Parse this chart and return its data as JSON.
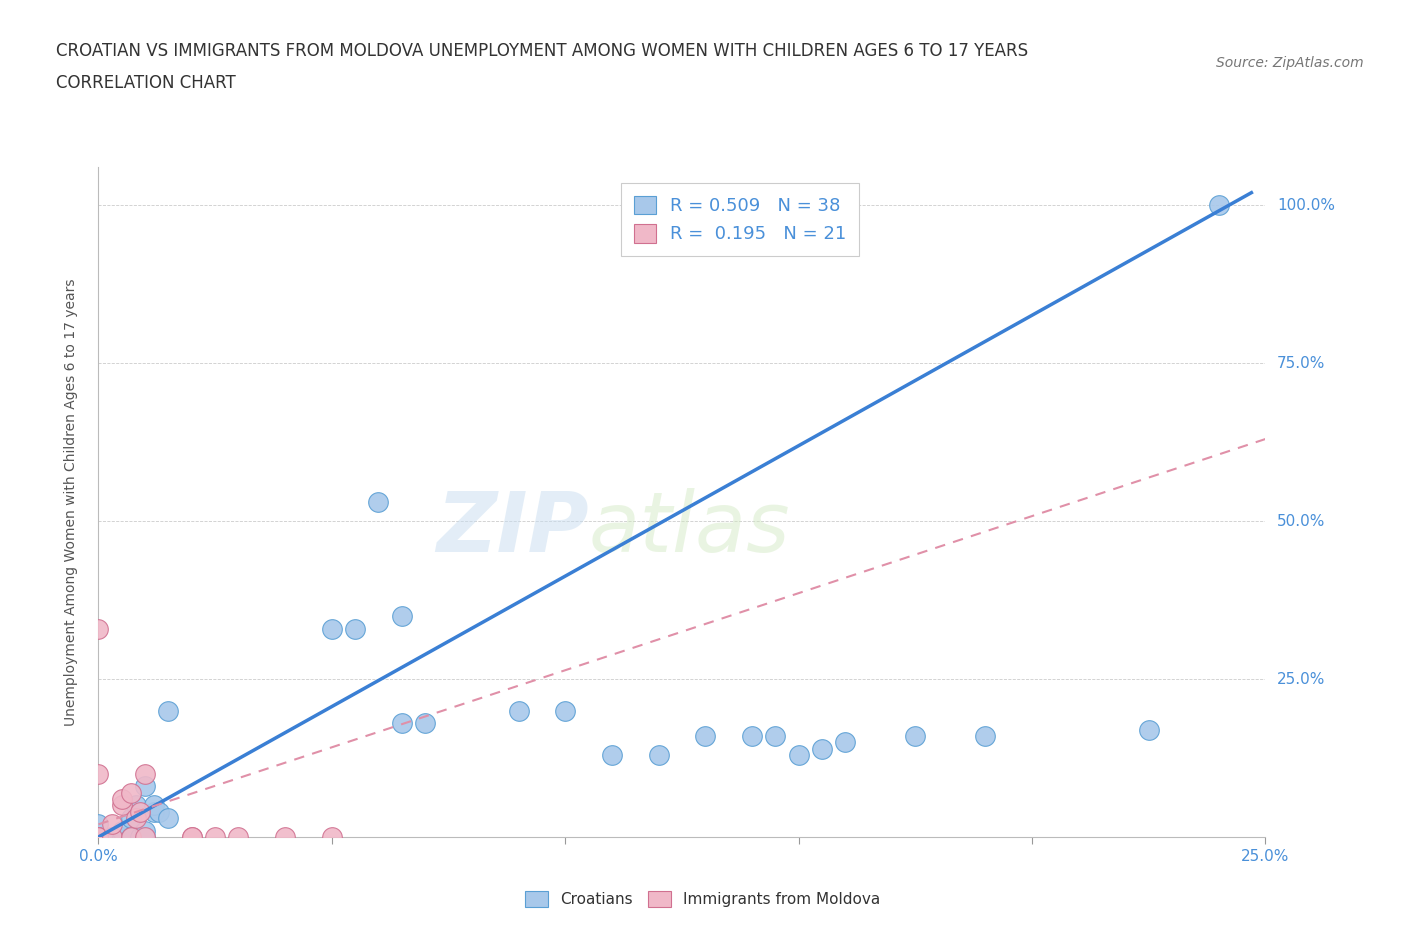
{
  "title_line1": "CROATIAN VS IMMIGRANTS FROM MOLDOVA UNEMPLOYMENT AMONG WOMEN WITH CHILDREN AGES 6 TO 17 YEARS",
  "title_line2": "CORRELATION CHART",
  "source": "Source: ZipAtlas.com",
  "ylabel": "Unemployment Among Women with Children Ages 6 to 17 years",
  "xlim": [
    0.0,
    0.25
  ],
  "ylim": [
    0.0,
    1.05
  ],
  "croatian_color": "#a8c8ea",
  "croatian_edge": "#5a9fd4",
  "moldovan_color": "#f0b8c8",
  "moldovan_edge": "#d07090",
  "line_croatian_color": "#3a7fd4",
  "line_moldovan_color": "#e090a8",
  "legend_R_croatian": "0.509",
  "legend_N_croatian": "38",
  "legend_R_moldovan": "0.195",
  "legend_N_moldovan": "21",
  "watermark_zip": "ZIP",
  "watermark_atlas": "atlas",
  "background_color": "#ffffff",
  "croatian_scatter_x": [
    0.0,
    0.0,
    0.0,
    0.003,
    0.005,
    0.005,
    0.007,
    0.007,
    0.008,
    0.009,
    0.01,
    0.01,
    0.01,
    0.012,
    0.012,
    0.013,
    0.015,
    0.015,
    0.05,
    0.055,
    0.06,
    0.065,
    0.065,
    0.07,
    0.09,
    0.1,
    0.11,
    0.12,
    0.13,
    0.14,
    0.145,
    0.15,
    0.155,
    0.16,
    0.175,
    0.19,
    0.225,
    0.24
  ],
  "croatian_scatter_y": [
    0.0,
    0.0,
    0.02,
    0.0,
    0.0,
    0.01,
    0.0,
    0.03,
    0.05,
    0.0,
    0.0,
    0.01,
    0.08,
    0.04,
    0.05,
    0.04,
    0.03,
    0.2,
    0.33,
    0.33,
    0.53,
    0.35,
    0.18,
    0.18,
    0.2,
    0.2,
    0.13,
    0.13,
    0.16,
    0.16,
    0.16,
    0.13,
    0.14,
    0.15,
    0.16,
    0.16,
    0.17,
    1.0
  ],
  "moldovan_scatter_x": [
    0.0,
    0.0,
    0.0,
    0.0,
    0.0,
    0.003,
    0.003,
    0.005,
    0.005,
    0.007,
    0.007,
    0.008,
    0.009,
    0.01,
    0.01,
    0.02,
    0.02,
    0.025,
    0.03,
    0.04,
    0.05
  ],
  "moldovan_scatter_y": [
    0.0,
    0.0,
    0.0,
    0.1,
    0.33,
    0.0,
    0.02,
    0.05,
    0.06,
    0.07,
    0.0,
    0.03,
    0.04,
    0.0,
    0.1,
    0.0,
    0.0,
    0.0,
    0.0,
    0.0,
    0.0
  ],
  "cr_line_x": [
    0.0,
    0.247
  ],
  "cr_line_y": [
    0.0,
    1.02
  ],
  "md_line_x": [
    0.0,
    0.25
  ],
  "md_line_y": [
    0.02,
    0.63
  ],
  "title_fontsize": 12,
  "axis_label_fontsize": 10,
  "tick_fontsize": 11,
  "legend_fontsize": 13,
  "source_fontsize": 10
}
